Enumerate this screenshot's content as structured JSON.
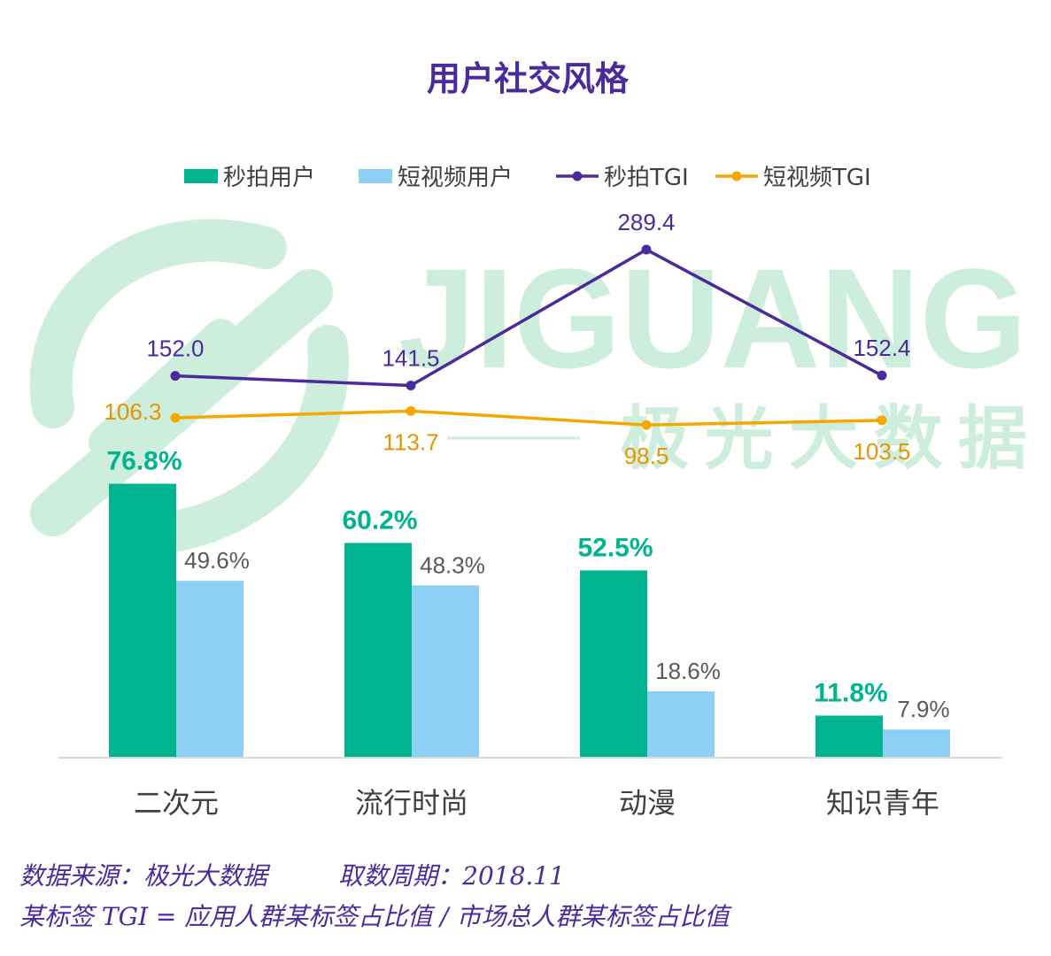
{
  "chart_data": {
    "type": "bar",
    "title": "用户社交风格",
    "categories": [
      "二次元",
      "流行时尚",
      "动漫",
      "知识青年"
    ],
    "series": [
      {
        "name": "秒拍用户",
        "kind": "bar",
        "color": "#00b48f",
        "values": [
          76.8,
          60.2,
          52.5,
          11.8
        ],
        "labels": [
          "76.8%",
          "60.2%",
          "52.5%",
          "11.8%"
        ]
      },
      {
        "name": "短视频用户",
        "kind": "bar",
        "color": "#8ecff5",
        "values": [
          49.6,
          48.3,
          18.6,
          7.9
        ],
        "labels": [
          "49.6%",
          "48.3%",
          "18.6%",
          "7.9%"
        ]
      },
      {
        "name": "秒拍TGI",
        "kind": "line",
        "color": "#4b2a9b",
        "values": [
          152.0,
          141.5,
          289.4,
          152.4
        ],
        "labels": [
          "152.0",
          "141.5",
          "289.4",
          "152.4"
        ]
      },
      {
        "name": "短视频TGI",
        "kind": "line",
        "color": "#f5a800",
        "values": [
          106.3,
          113.7,
          98.5,
          103.5
        ],
        "labels": [
          "106.3",
          "113.7",
          "98.5",
          "103.5"
        ]
      }
    ],
    "legend_position": "top",
    "grid": false
  },
  "watermark": {
    "text": "JIGUANG",
    "text_cn": "极光大数据"
  },
  "footer": {
    "source": "数据来源：极光大数据",
    "period": "取数周期：2018.11",
    "note": "某标签 TGI = 应用人群某标签占比值 / 市场总人群某标签占比值"
  }
}
